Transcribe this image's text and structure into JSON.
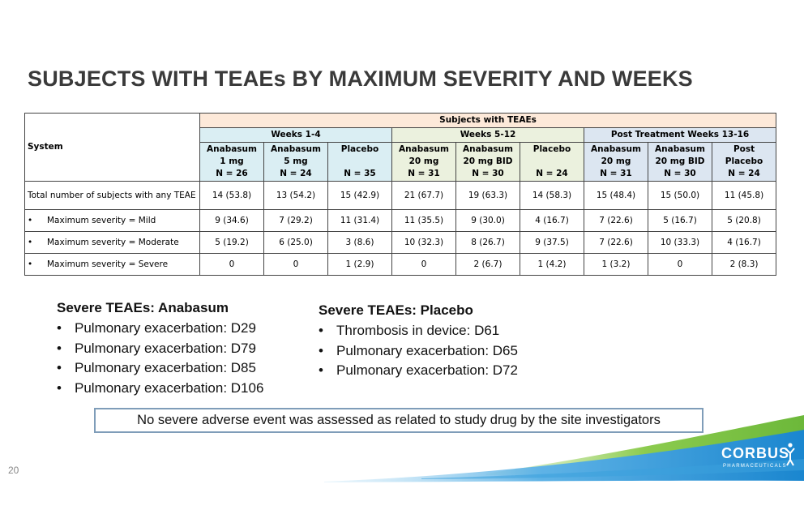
{
  "slide": {
    "title": "SUBJECTS WITH TEAEs BY MAXIMUM SEVERITY AND WEEKS",
    "page_number": "20"
  },
  "table": {
    "system_header": "System",
    "top_header": "Subjects with TEAEs",
    "groups": [
      {
        "label": "Weeks 1-4",
        "color": "#daeef3"
      },
      {
        "label": "Weeks 5-12",
        "color": "#ebf1de"
      },
      {
        "label": "Post Treatment Weeks 13-16",
        "color": "#dce6f1"
      }
    ],
    "columns": [
      {
        "name": "Anabasum\n1 mg",
        "n": "N = 26"
      },
      {
        "name": "Anabasum\n5 mg",
        "n": "N = 24"
      },
      {
        "name": "Placebo",
        "n": "N = 35"
      },
      {
        "name": "Anabasum\n20 mg",
        "n": "N = 31"
      },
      {
        "name": "Anabasum\n20 mg BID",
        "n": "N = 30"
      },
      {
        "name": "Placebo",
        "n": "N = 24"
      },
      {
        "name": "Anabasum\n20 mg",
        "n": "N = 31"
      },
      {
        "name": "Anabasum\n20 mg BID",
        "n": "N = 30"
      },
      {
        "name": "Post\nPlacebo",
        "n": "N = 24"
      }
    ],
    "rows": [
      {
        "label": "Total number of subjects with any TEAE",
        "bullet": "",
        "values": [
          "14 (53.8)",
          "13 (54.2)",
          "15 (42.9)",
          "21 (67.7)",
          "19 (63.3)",
          "14 (58.3)",
          "15 (48.4)",
          "15 (50.0)",
          "11 (45.8)"
        ]
      },
      {
        "label": "Maximum severity = Mild",
        "bullet": "•",
        "values": [
          "9 (34.6)",
          "7 (29.2)",
          "11 (31.4)",
          "11 (35.5)",
          "9 (30.0)",
          "4 (16.7)",
          "7 (22.6)",
          "5 (16.7)",
          "5 (20.8)"
        ]
      },
      {
        "label": "Maximum severity = Moderate",
        "bullet": "•",
        "values": [
          "5 (19.2)",
          "6 (25.0)",
          "3 (8.6)",
          "10 (32.3)",
          "8 (26.7)",
          "9 (37.5)",
          "7 (22.6)",
          "10 (33.3)",
          "4 (16.7)"
        ]
      },
      {
        "label": "Maximum severity = Severe",
        "bullet": "•",
        "values": [
          "0",
          "0",
          "1 (2.9)",
          "0",
          "2 (6.7)",
          "1 (4.2)",
          "1 (3.2)",
          "0",
          "2 (8.3)"
        ]
      }
    ]
  },
  "severe_anabasum": {
    "heading": "Severe TEAEs: Anabasum",
    "items": [
      "Pulmonary exacerbation: D29",
      "Pulmonary exacerbation: D79",
      "Pulmonary exacerbation: D85",
      "Pulmonary exacerbation: D106"
    ]
  },
  "severe_placebo": {
    "heading": "Severe TEAEs: Placebo",
    "items": [
      "Thrombosis in device: D61",
      "Pulmonary exacerbation: D65",
      "Pulmonary exacerbation: D72"
    ]
  },
  "bullet_glyph": "•",
  "note": "No severe adverse event was assessed as related to study drug by the site investigators",
  "logo": {
    "name": "CORBUS",
    "sub": "PHARMACEUTICALS",
    "icon": "corbus-figure-icon"
  },
  "colors": {
    "title": "#3a3a3a",
    "note_border": "#7f9db9",
    "swoosh_blue": "#1f8fd2",
    "swoosh_green": "#7cc243",
    "top_header": "#fde9d9"
  }
}
